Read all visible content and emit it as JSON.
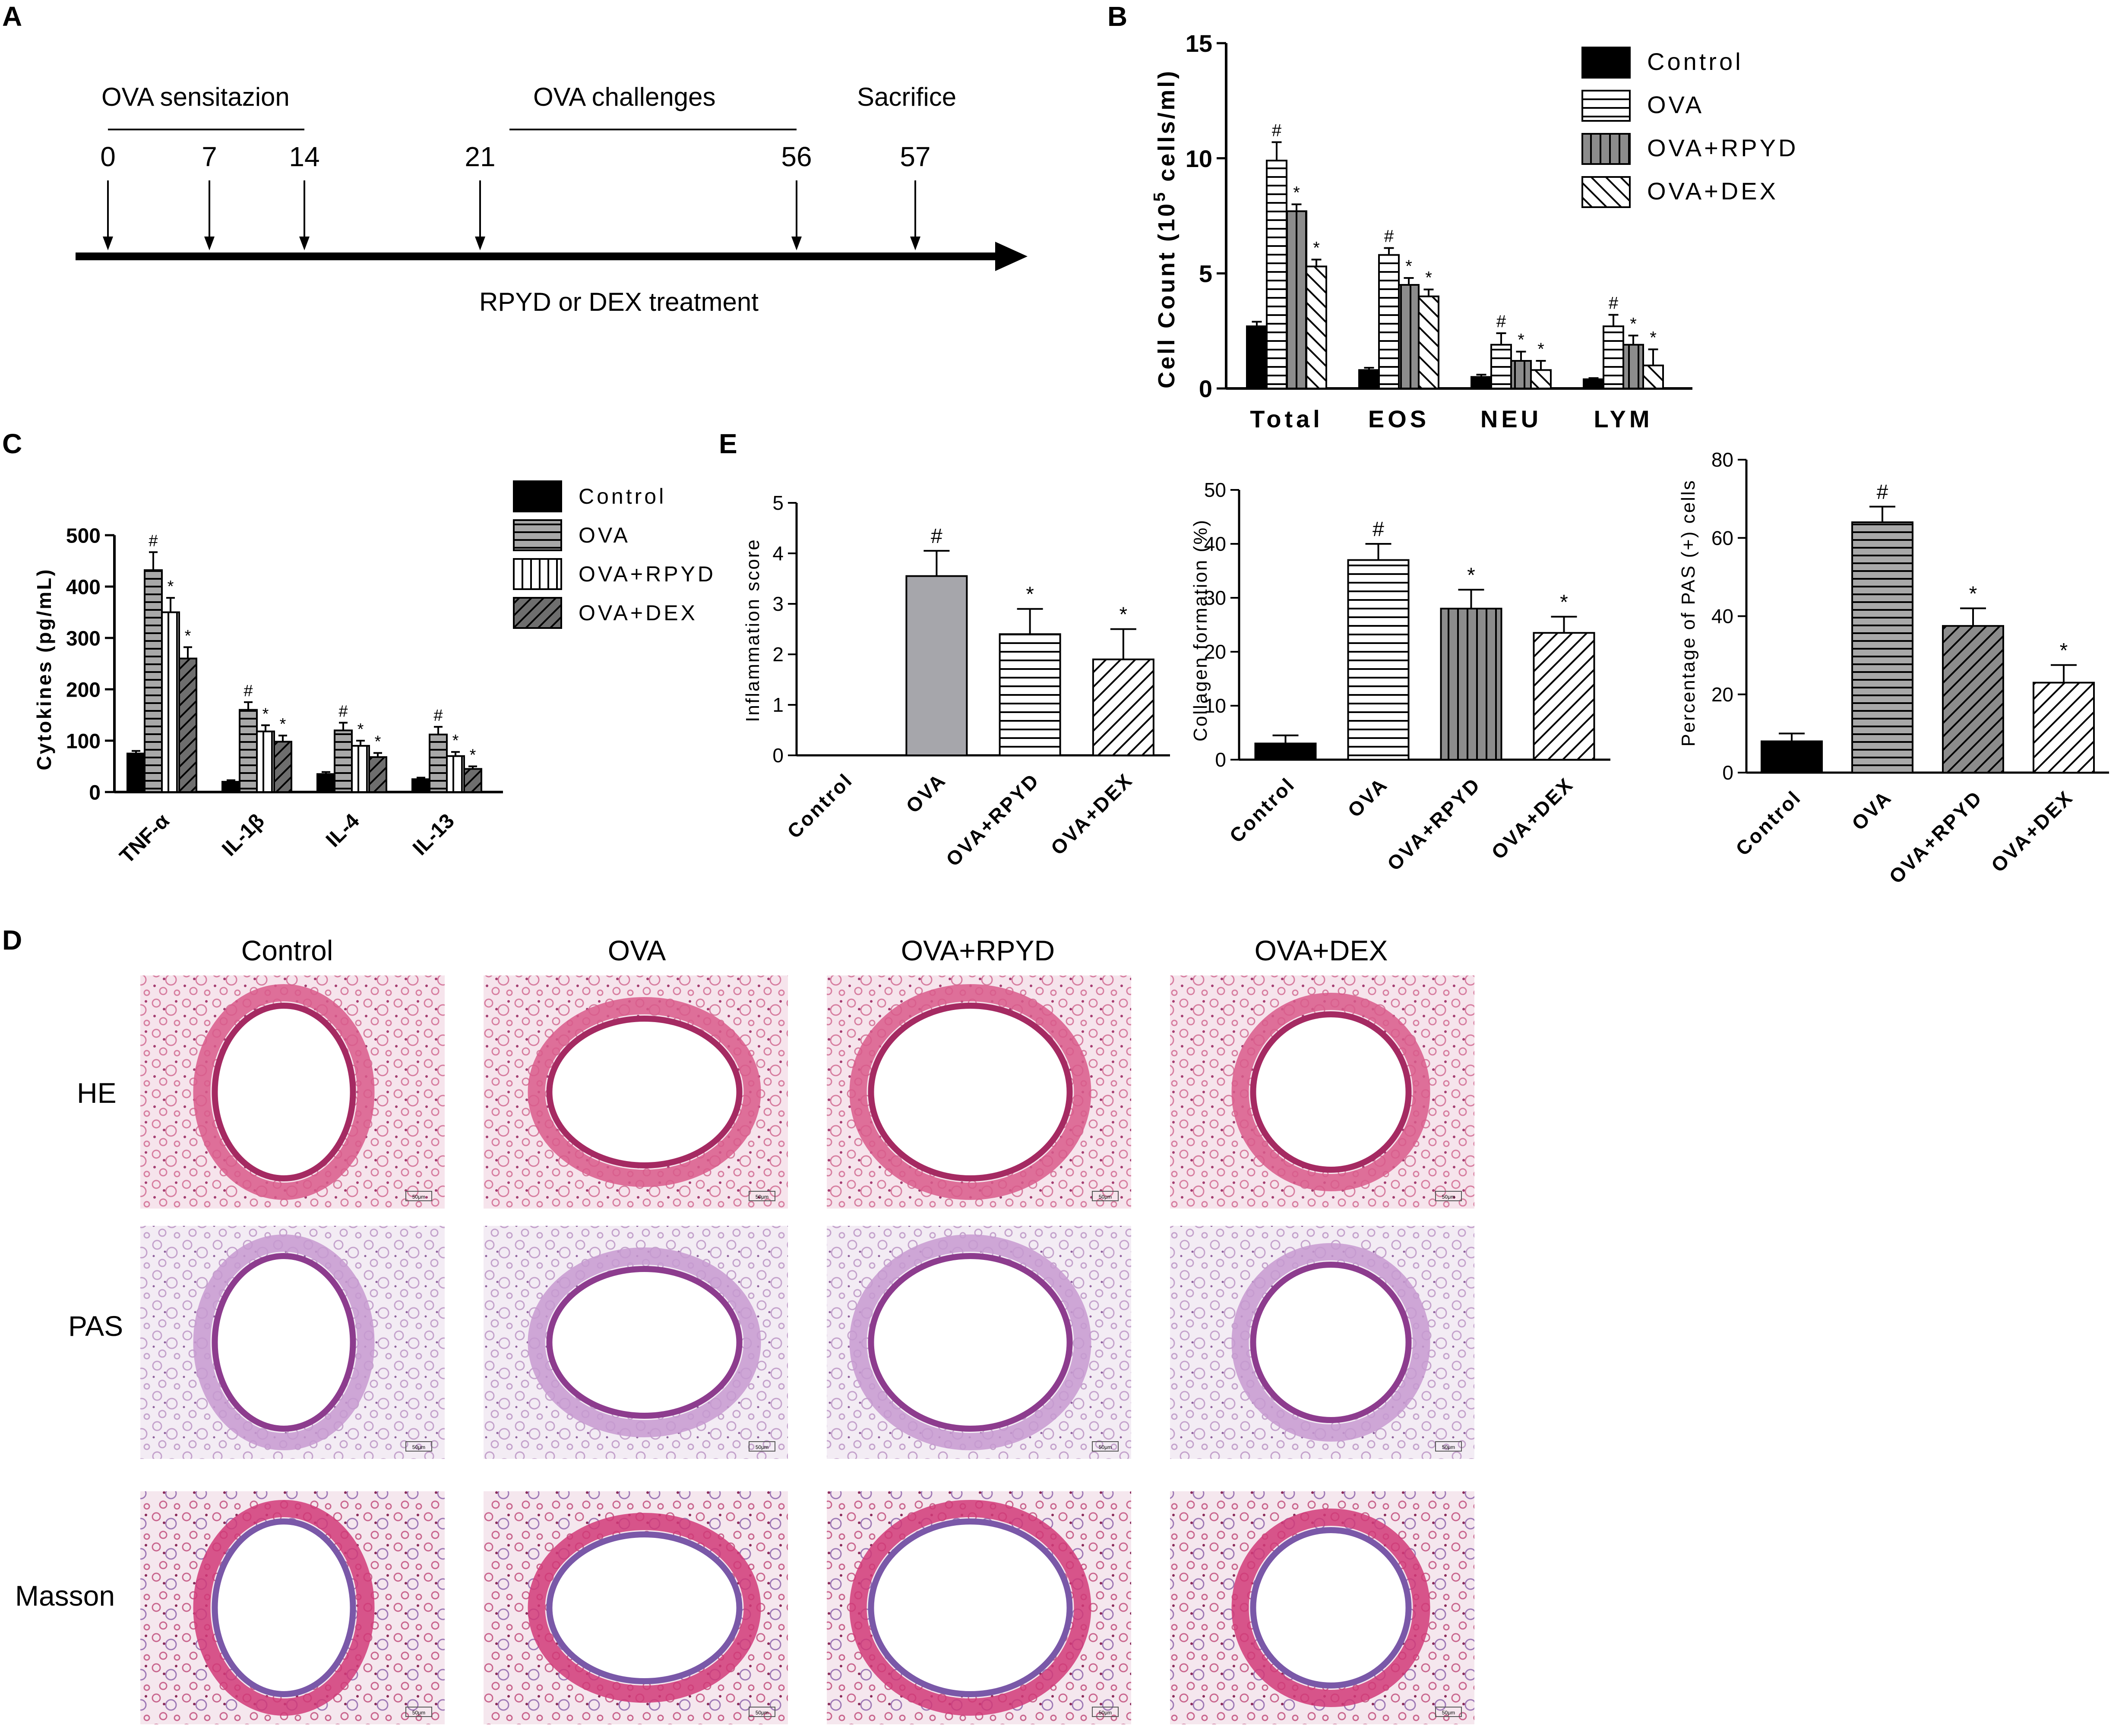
{
  "panel_labels": {
    "a": "A",
    "b": "B",
    "c": "C",
    "d": "D",
    "e": "E"
  },
  "timeline": {
    "sensitization_label": "OVA sensitazion",
    "challenge_label": "OVA challenges",
    "sacrifice_label": "Sacrifice",
    "treatment_label": "RPYD or DEX treatment",
    "days": [
      "0",
      "7",
      "14",
      "21",
      "56",
      "57"
    ]
  },
  "colors": {
    "black": "#000000",
    "gray_bar": "#a6a6ab",
    "dark_gray": "#8c8c8c",
    "mid_gray": "#9a9a9a"
  },
  "chart_data": [
    {
      "id": "B",
      "type": "bar",
      "ylabel_main": "Cell Count (10",
      "ylabel_sup": "5",
      "ylabel_tail": " cells/ml)",
      "ylim": [
        0,
        15
      ],
      "yticks": [
        "0",
        "5",
        "10",
        "15"
      ],
      "categories": [
        "Total",
        "EOS",
        "NEU",
        "LYM"
      ],
      "legend": [
        "Control",
        "OVA",
        "OVA+RPYD",
        "OVA+DEX"
      ],
      "series": [
        {
          "name": "Control",
          "values": [
            2.7,
            0.8,
            0.5,
            0.4
          ],
          "errors": [
            0.2,
            0.1,
            0.1,
            0.05
          ],
          "marks": [
            "",
            "",
            "",
            ""
          ]
        },
        {
          "name": "OVA",
          "values": [
            9.9,
            5.8,
            1.9,
            2.7
          ],
          "errors": [
            0.8,
            0.3,
            0.5,
            0.5
          ],
          "marks": [
            "#",
            "#",
            "#",
            "#"
          ]
        },
        {
          "name": "OVA+RPYD",
          "values": [
            7.7,
            4.5,
            1.2,
            1.9
          ],
          "errors": [
            0.3,
            0.3,
            0.4,
            0.4
          ],
          "marks": [
            "*",
            "*",
            "*",
            "*"
          ]
        },
        {
          "name": "OVA+DEX",
          "values": [
            5.3,
            4.0,
            0.8,
            1.0
          ],
          "errors": [
            0.3,
            0.3,
            0.4,
            0.7
          ],
          "marks": [
            "*",
            "*",
            "*",
            "*"
          ]
        }
      ]
    },
    {
      "id": "C",
      "type": "bar",
      "ylabel": "Cytokines (pg/mL)",
      "ylim": [
        0,
        500
      ],
      "yticks": [
        "0",
        "100",
        "200",
        "300",
        "400",
        "500"
      ],
      "categories": [
        "TNF-α",
        "IL-1β",
        "IL-4",
        "IL-13"
      ],
      "legend": [
        "Control",
        "OVA",
        "OVA+RPYD",
        "OVA+DEX"
      ],
      "series": [
        {
          "name": "Control",
          "values": [
            75,
            20,
            35,
            25
          ],
          "errors": [
            5,
            3,
            4,
            3
          ],
          "marks": [
            "",
            "",
            "",
            ""
          ]
        },
        {
          "name": "OVA",
          "values": [
            432,
            160,
            120,
            112
          ],
          "errors": [
            35,
            15,
            15,
            15
          ],
          "marks": [
            "#",
            "#",
            "#",
            "#"
          ]
        },
        {
          "name": "OVA+RPYD",
          "values": [
            350,
            118,
            90,
            70
          ],
          "errors": [
            28,
            12,
            10,
            8
          ],
          "marks": [
            "*",
            "*",
            "*",
            "*"
          ]
        },
        {
          "name": "OVA+DEX",
          "values": [
            260,
            98,
            68,
            45
          ],
          "errors": [
            22,
            12,
            8,
            5
          ],
          "marks": [
            "*",
            "*",
            "*",
            "*"
          ]
        }
      ]
    },
    {
      "id": "E1",
      "type": "bar",
      "ylabel": "Inflammation score",
      "ylim": [
        0,
        5
      ],
      "yticks": [
        "0",
        "1",
        "2",
        "3",
        "4",
        "5"
      ],
      "categories": [
        "Control",
        "OVA",
        "OVA+RPYD",
        "OVA+DEX"
      ],
      "values": [
        0,
        3.55,
        2.4,
        1.9
      ],
      "errors": [
        0,
        0.5,
        0.5,
        0.6
      ],
      "marks": [
        "",
        "#",
        "*",
        "*"
      ]
    },
    {
      "id": "E2",
      "type": "bar",
      "ylabel": "Collagen formation (%)",
      "ylim": [
        0,
        50
      ],
      "yticks": [
        "0",
        "10",
        "20",
        "30",
        "40",
        "50"
      ],
      "categories": [
        "Control",
        "OVA",
        "OVA+RPYD",
        "OVA+DEX"
      ],
      "values": [
        3,
        37,
        28,
        23.5
      ],
      "errors": [
        1.5,
        3,
        3.5,
        3
      ],
      "marks": [
        "",
        "#",
        "*",
        "*"
      ]
    },
    {
      "id": "E3",
      "type": "bar",
      "ylabel": "Percentage of PAS (+) cells",
      "ylim": [
        0,
        80
      ],
      "yticks": [
        "0",
        "20",
        "40",
        "60",
        "80"
      ],
      "categories": [
        "Control",
        "OVA",
        "OVA+RPYD",
        "OVA+DEX"
      ],
      "values": [
        8,
        64,
        37.5,
        23
      ],
      "errors": [
        2,
        4,
        4.5,
        4.5
      ],
      "marks": [
        "",
        "#",
        "*",
        "*"
      ]
    }
  ],
  "histology": {
    "columns": [
      "Control",
      "OVA",
      "OVA+RPYD",
      "OVA+DEX"
    ],
    "rows": [
      "HE",
      "PAS",
      "Masson"
    ],
    "scale_labels": [
      "50μm",
      "50μm",
      "50μm",
      "50μm",
      "50μm",
      "50μm",
      "50μm",
      "50μm",
      "50μm",
      "50μm",
      "50μm",
      "50μm"
    ]
  }
}
